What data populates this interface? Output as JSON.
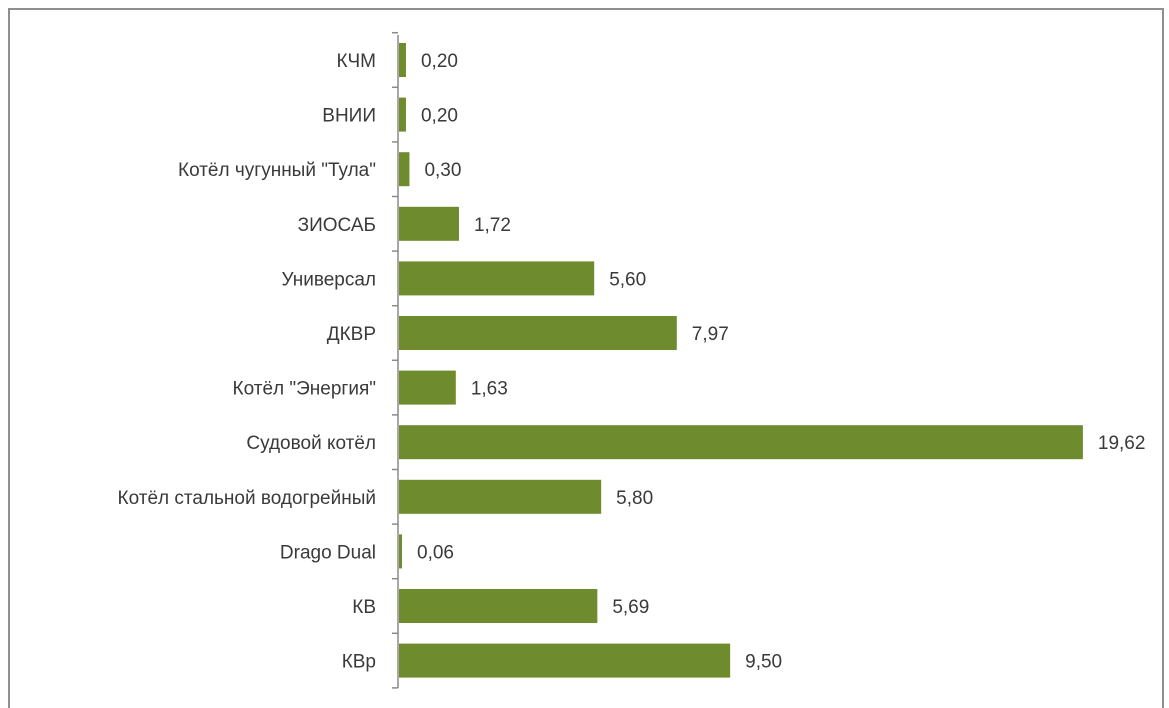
{
  "chart_data": {
    "type": "bar",
    "orientation": "horizontal",
    "categories": [
      "КЧМ",
      "ВНИИ",
      "Котёл чугунный \"Тула\"",
      "ЗИОСАБ",
      "Универсал",
      "ДКВР",
      "Котёл \"Энергия\"",
      "Судовой котёл",
      "Котёл стальной водогрейный",
      "Drago Dual",
      "КВ",
      "КВр"
    ],
    "values": [
      0.2,
      0.2,
      0.3,
      1.72,
      5.6,
      7.97,
      1.63,
      19.62,
      5.8,
      0.06,
      5.69,
      9.5
    ],
    "value_labels": [
      "0,20",
      "0,20",
      "0,30",
      "1,72",
      "5,60",
      "7,97",
      "1,63",
      "19,62",
      "5,80",
      "0,06",
      "5,69",
      "9,50"
    ],
    "xlim": [
      0,
      21
    ],
    "bar_color": "#6e8c2e",
    "grid": false,
    "legend": "none",
    "title": "",
    "xlabel": "",
    "ylabel": ""
  }
}
